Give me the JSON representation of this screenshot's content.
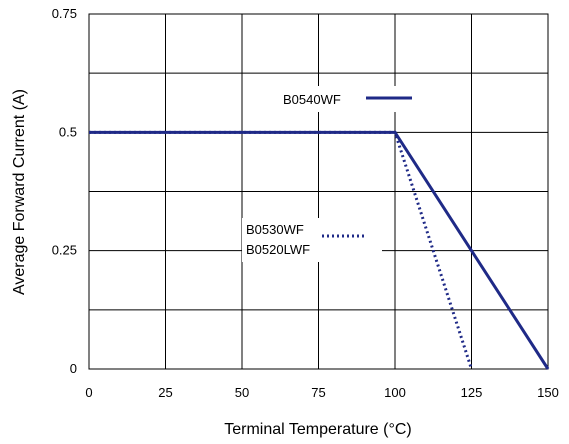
{
  "chart_data": {
    "type": "line",
    "xlabel": "Terminal Temperature (°C)",
    "ylabel": "Average Forward Current (A)",
    "xlim": [
      0,
      150
    ],
    "ylim": [
      0,
      0.75
    ],
    "x_ticks": [
      "0",
      "25",
      "50",
      "75",
      "100",
      "125",
      "150"
    ],
    "y_ticks": [
      "0",
      "0.25",
      "0.5",
      "0.75"
    ],
    "grid": true,
    "series": [
      {
        "name": "B0540WF",
        "style": "solid",
        "color": "#1f2a87",
        "x": [
          0,
          100,
          150
        ],
        "y": [
          0.5,
          0.5,
          0
        ]
      },
      {
        "name": "B0530WF / B0520LWF",
        "style": "dotted",
        "color": "#1f2a87",
        "x": [
          0,
          100,
          125
        ],
        "y": [
          0.5,
          0.5,
          0
        ]
      }
    ],
    "legend_labels": [
      "B0540WF",
      "B0530WF",
      "B0520LWF"
    ]
  }
}
